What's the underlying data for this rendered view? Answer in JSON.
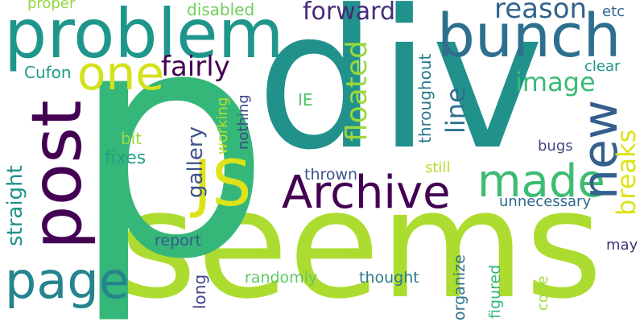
{
  "words": [
    {
      "text": "seems",
      "color": "#addc30"
    },
    {
      "text": "div",
      "color": "#21918c"
    },
    {
      "text": "p",
      "color": "#35b779"
    },
    {
      "text": "problem",
      "color": "#1f968b"
    },
    {
      "text": "bunch",
      "color": "#2e6f8e"
    },
    {
      "text": "post",
      "color": "#440154"
    },
    {
      "text": "Archive",
      "color": "#440154"
    },
    {
      "text": "JS",
      "color": "#dde318"
    },
    {
      "text": "page",
      "color": "#25848e"
    },
    {
      "text": "one",
      "color": "#d2e21b"
    },
    {
      "text": "made",
      "color": "#3dbc74"
    },
    {
      "text": "new",
      "color": "#355f8d"
    },
    {
      "text": "fairly",
      "color": "#440154"
    },
    {
      "text": "forward",
      "color": "#472a7a"
    },
    {
      "text": "floated",
      "color": "#9bd93c"
    },
    {
      "text": "image",
      "color": "#3aba76"
    },
    {
      "text": "reason",
      "color": "#33638d"
    },
    {
      "text": "line",
      "color": "#2e6f8e"
    },
    {
      "text": "breaks",
      "color": "#dde318"
    },
    {
      "text": "straight",
      "color": "#21918c"
    },
    {
      "text": "gallery",
      "color": "#3b528b"
    },
    {
      "text": "fixes",
      "color": "#1fa188"
    },
    {
      "text": "working",
      "color": "#b5de2b"
    },
    {
      "text": "nothing",
      "color": "#3e4989"
    },
    {
      "text": "throughout",
      "color": "#2a788e"
    },
    {
      "text": "disabled",
      "color": "#6ece58"
    },
    {
      "text": "proper",
      "color": "#90d743"
    },
    {
      "text": "etc",
      "color": "#32658e"
    },
    {
      "text": "Cufon",
      "color": "#1e9b8a"
    },
    {
      "text": "clear",
      "color": "#1f968b"
    },
    {
      "text": "IE",
      "color": "#52c569"
    },
    {
      "text": "bit",
      "color": "#9bd93c"
    },
    {
      "text": "bugs",
      "color": "#3e4989"
    },
    {
      "text": "thrown",
      "color": "#3b528b"
    },
    {
      "text": "still",
      "color": "#b5de2b"
    },
    {
      "text": "unnecessary",
      "color": "#31688e"
    },
    {
      "text": "report",
      "color": "#38588c"
    },
    {
      "text": "randomly",
      "color": "#5ec962"
    },
    {
      "text": "thought",
      "color": "#2a788e"
    },
    {
      "text": "long",
      "color": "#414487"
    },
    {
      "text": "organize",
      "color": "#2c728e"
    },
    {
      "text": "figured",
      "color": "#35b779"
    },
    {
      "text": "code",
      "color": "#a0da39"
    },
    {
      "text": "may",
      "color": "#46337e"
    }
  ]
}
